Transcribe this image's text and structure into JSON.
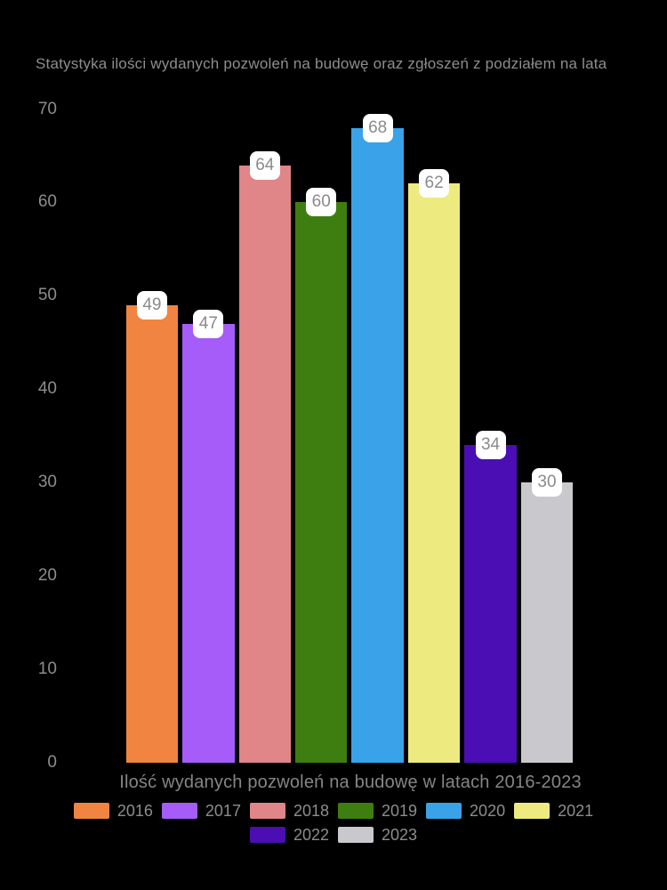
{
  "chart_data": {
    "type": "bar",
    "title": "Statystyka ilości wydanych pozwoleń na budowę oraz zgłoszeń z podziałem na lata",
    "xlabel": "Ilość wydanych pozwoleń na budowę w latach 2016-2023",
    "ylabel": "",
    "ylim": [
      0,
      70
    ],
    "yticks": [
      0,
      10,
      20,
      30,
      40,
      50,
      60,
      70
    ],
    "grid": false,
    "legend_position": "bottom",
    "categories": [
      "2016",
      "2017",
      "2018",
      "2019",
      "2020",
      "2021",
      "2022",
      "2023"
    ],
    "values": [
      49,
      47,
      64,
      60,
      68,
      62,
      34,
      30
    ],
    "colors": [
      "#F08440",
      "#A55CF9",
      "#E08588",
      "#3E7E10",
      "#3AA2E9",
      "#EDEB80",
      "#4A0EB4",
      "#C9C9CD"
    ],
    "background_color": "#000000",
    "text_color": "#8D8D8D",
    "value_label_box": {
      "background": "#FFFFFF",
      "text_color": "#8A8A8A"
    }
  }
}
